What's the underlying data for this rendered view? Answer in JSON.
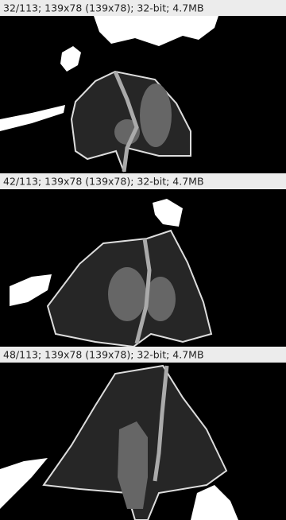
{
  "panels": [
    {
      "header": "32/113; 139x78  (139x78); 32-bit; 4.7MB"
    },
    {
      "header": "42/113; 139x78  (139x78); 32-bit; 4.7MB"
    },
    {
      "header": "48/113; 139x78  (139x78); 32-bit; 4.7MB"
    }
  ]
}
